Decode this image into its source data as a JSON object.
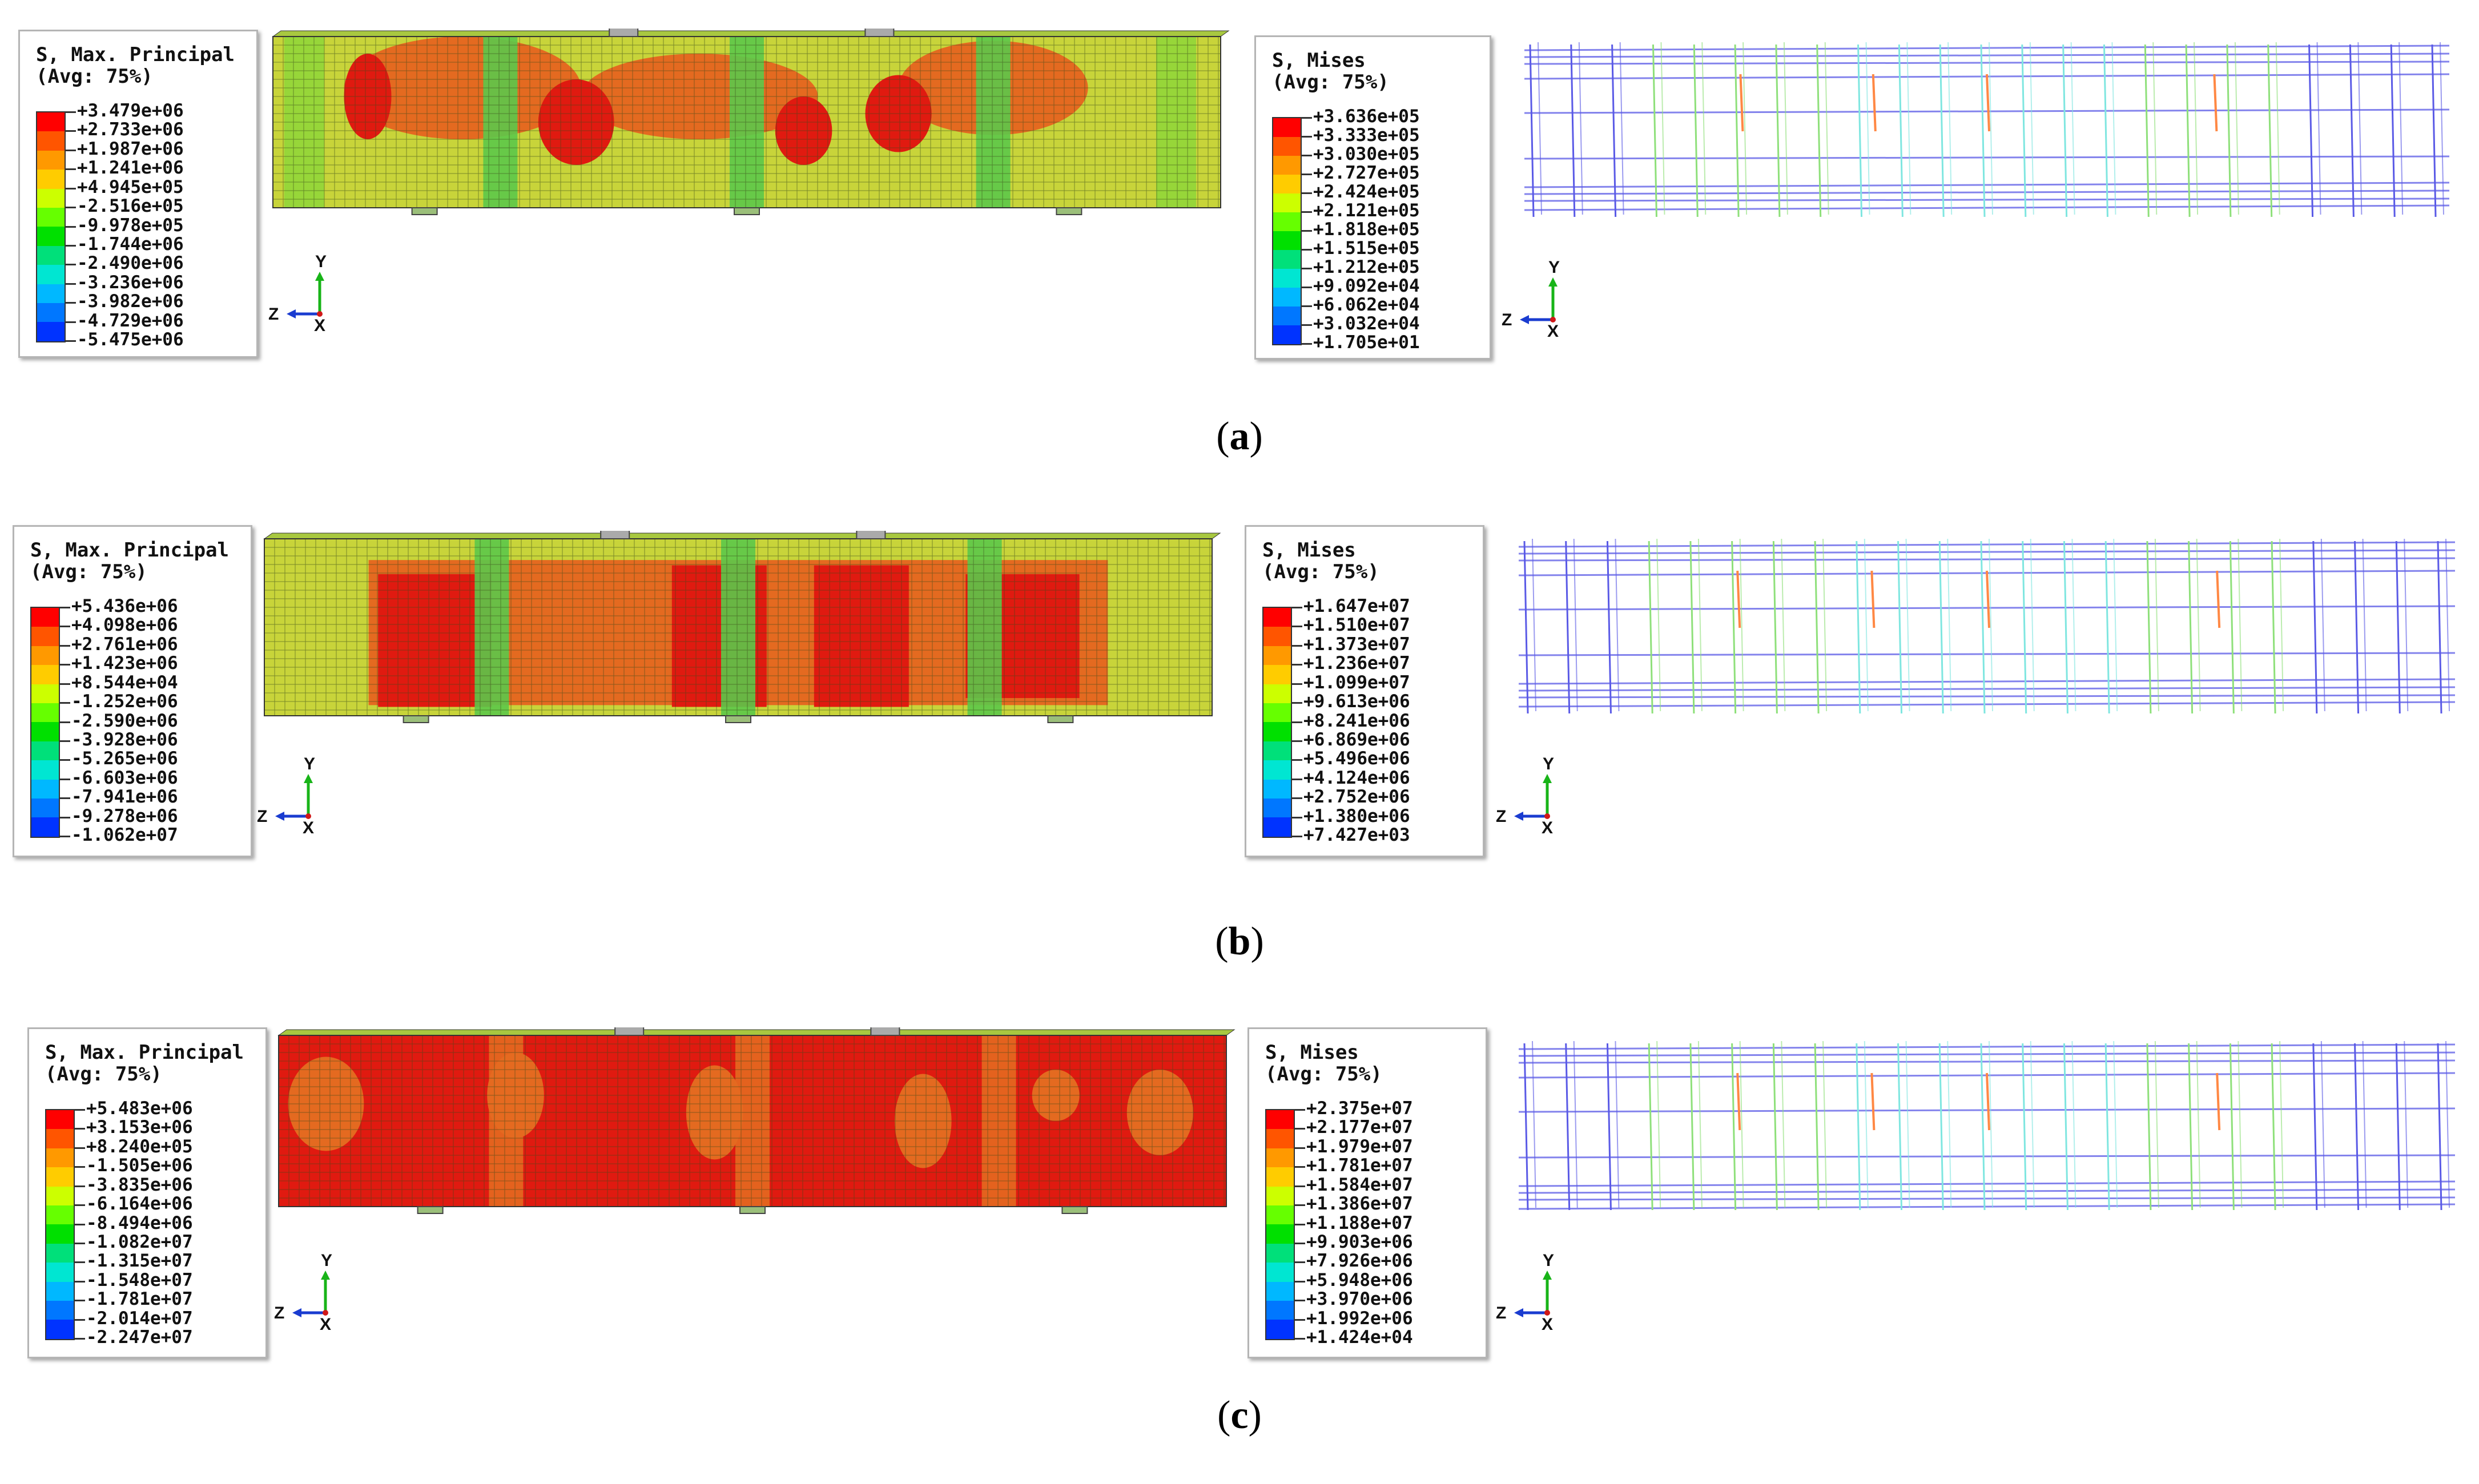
{
  "panels": [
    {
      "caption_letter": "a",
      "principal_legend": {
        "title_line1": "S, Max. Principal",
        "title_line2": "(Avg: 75%)",
        "values": [
          "+3.479e+06",
          "+2.733e+06",
          "+1.987e+06",
          "+1.241e+06",
          "+4.945e+05",
          "-2.516e+05",
          "-9.978e+05",
          "-1.744e+06",
          "-2.490e+06",
          "-3.236e+06",
          "-3.982e+06",
          "-4.729e+06",
          "-5.475e+06"
        ]
      },
      "mises_legend": {
        "title_line1": "S, Mises",
        "title_line2": "(Avg: 75%)",
        "values": [
          "+3.636e+05",
          "+3.333e+05",
          "+3.030e+05",
          "+2.727e+05",
          "+2.424e+05",
          "+2.121e+05",
          "+1.818e+05",
          "+1.515e+05",
          "+1.212e+05",
          "+9.092e+04",
          "+6.062e+04",
          "+3.032e+04",
          "+1.705e+01"
        ]
      },
      "beam_state": "low"
    },
    {
      "caption_letter": "b",
      "principal_legend": {
        "title_line1": "S, Max. Principal",
        "title_line2": "(Avg: 75%)",
        "values": [
          "+5.436e+06",
          "+4.098e+06",
          "+2.761e+06",
          "+1.423e+06",
          "+8.544e+04",
          "-1.252e+06",
          "-2.590e+06",
          "-3.928e+06",
          "-5.265e+06",
          "-6.603e+06",
          "-7.941e+06",
          "-9.278e+06",
          "-1.062e+07"
        ]
      },
      "mises_legend": {
        "title_line1": "S, Mises",
        "title_line2": "(Avg: 75%)",
        "values": [
          "+1.647e+07",
          "+1.510e+07",
          "+1.373e+07",
          "+1.236e+07",
          "+1.099e+07",
          "+9.613e+06",
          "+8.241e+06",
          "+6.869e+06",
          "+5.496e+06",
          "+4.124e+06",
          "+2.752e+06",
          "+1.380e+06",
          "+7.427e+03"
        ]
      },
      "beam_state": "medium"
    },
    {
      "caption_letter": "c",
      "principal_legend": {
        "title_line1": "S, Max. Principal",
        "title_line2": "(Avg: 75%)",
        "values": [
          "+5.483e+06",
          "+3.153e+06",
          "+8.240e+05",
          "-1.505e+06",
          "-3.835e+06",
          "-6.164e+06",
          "-8.494e+06",
          "-1.082e+07",
          "-1.315e+07",
          "-1.548e+07",
          "-1.781e+07",
          "-2.014e+07",
          "-2.247e+07"
        ]
      },
      "mises_legend": {
        "title_line1": "S, Mises",
        "title_line2": "(Avg: 75%)",
        "values": [
          "+2.375e+07",
          "+2.177e+07",
          "+1.979e+07",
          "+1.781e+07",
          "+1.584e+07",
          "+1.386e+07",
          "+1.188e+07",
          "+9.903e+06",
          "+7.926e+06",
          "+5.948e+06",
          "+3.970e+06",
          "+1.992e+06",
          "+1.424e+04"
        ]
      },
      "beam_state": "high"
    }
  ],
  "axis_labels": {
    "y": "Y",
    "z": "Z",
    "x": "X"
  },
  "colors": {
    "legend_bands": [
      "#ff0000",
      "#ff5500",
      "#ff9900",
      "#ffcc00",
      "#ccff00",
      "#66ff00",
      "#00e000",
      "#00e07a",
      "#00e6d2",
      "#00b8ff",
      "#0077ff",
      "#0033ff",
      "#0000e6"
    ],
    "beam_green": "#8ed63a",
    "beam_yellowgreen": "#c8d43a",
    "beam_orange": "#e46a20",
    "beam_red": "#e01a10",
    "beam_column_green": "#5cc84a",
    "rebar_blue": "#5a5ae6",
    "rebar_cyan": "#7fe6e0",
    "rebar_green": "#8ee07a",
    "rebar_orange": "#ff8844"
  }
}
